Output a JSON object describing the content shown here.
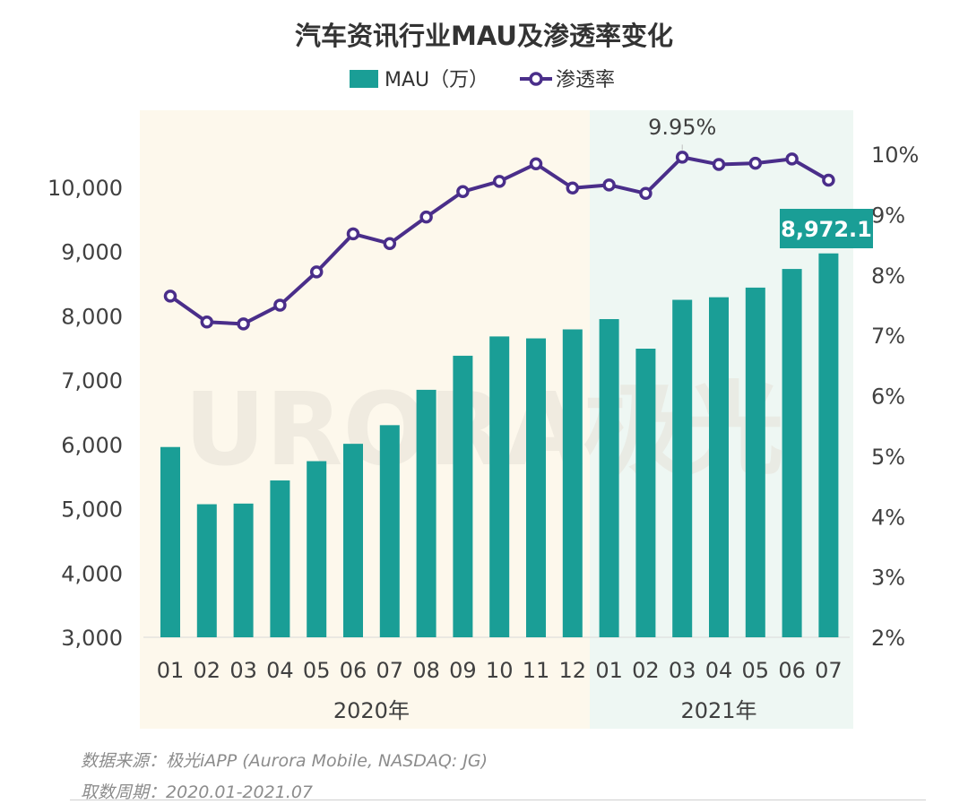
{
  "chart_data": {
    "type": "bar+line",
    "title": "汽车资讯行业MAU及渗透率变化",
    "legend": [
      {
        "name": "MAU（万）",
        "kind": "bar"
      },
      {
        "name": "渗透率",
        "kind": "line"
      }
    ],
    "categories": [
      "01",
      "02",
      "03",
      "04",
      "05",
      "06",
      "07",
      "08",
      "09",
      "10",
      "11",
      "12",
      "01",
      "02",
      "03",
      "04",
      "05",
      "06",
      "07"
    ],
    "groups": [
      {
        "label": "2020年",
        "from": 0,
        "to": 11
      },
      {
        "label": "2021年",
        "from": 12,
        "to": 18
      }
    ],
    "series": [
      {
        "name": "MAU（万）",
        "type": "bar",
        "axis": "left",
        "values": [
          5960,
          5070,
          5080,
          5440,
          5740,
          6010,
          6300,
          6850,
          7380,
          7680,
          7650,
          7790,
          7950,
          7490,
          8250,
          8290,
          8440,
          8730,
          8972.1
        ]
      },
      {
        "name": "渗透率",
        "type": "line",
        "axis": "right",
        "values": [
          7.65,
          7.22,
          7.19,
          7.5,
          8.05,
          8.68,
          8.52,
          8.96,
          9.38,
          9.55,
          9.84,
          9.44,
          9.49,
          9.35,
          9.95,
          9.83,
          9.85,
          9.92,
          9.57
        ]
      }
    ],
    "yLeft": {
      "min": 3000,
      "max": 10000,
      "ticks": [
        "3,000",
        "4,000",
        "5,000",
        "6,000",
        "7,000",
        "8,000",
        "9,000",
        "10,000"
      ]
    },
    "yRight": {
      "min": 2,
      "max": 10,
      "ticks": [
        "2%",
        "3%",
        "4%",
        "5%",
        "6%",
        "7%",
        "8%",
        "9%",
        "10%"
      ]
    },
    "annotations": [
      {
        "text": "9.95%",
        "series": "渗透率",
        "index": 14
      },
      {
        "text": "8,972.1",
        "series": "MAU（万）",
        "index": 18
      }
    ],
    "watermark": "URORA极光",
    "colors": {
      "bar": "#1a9e96",
      "line": "#4a2e8a",
      "bg2020": "#fdf8ec",
      "bg2021": "#eef7f3",
      "text": "#404040"
    }
  },
  "footer": {
    "source": "数据来源：极光iAPP (Aurora Mobile, NASDAQ: JG)",
    "period": "取数周期：2020.01-2021.07"
  }
}
